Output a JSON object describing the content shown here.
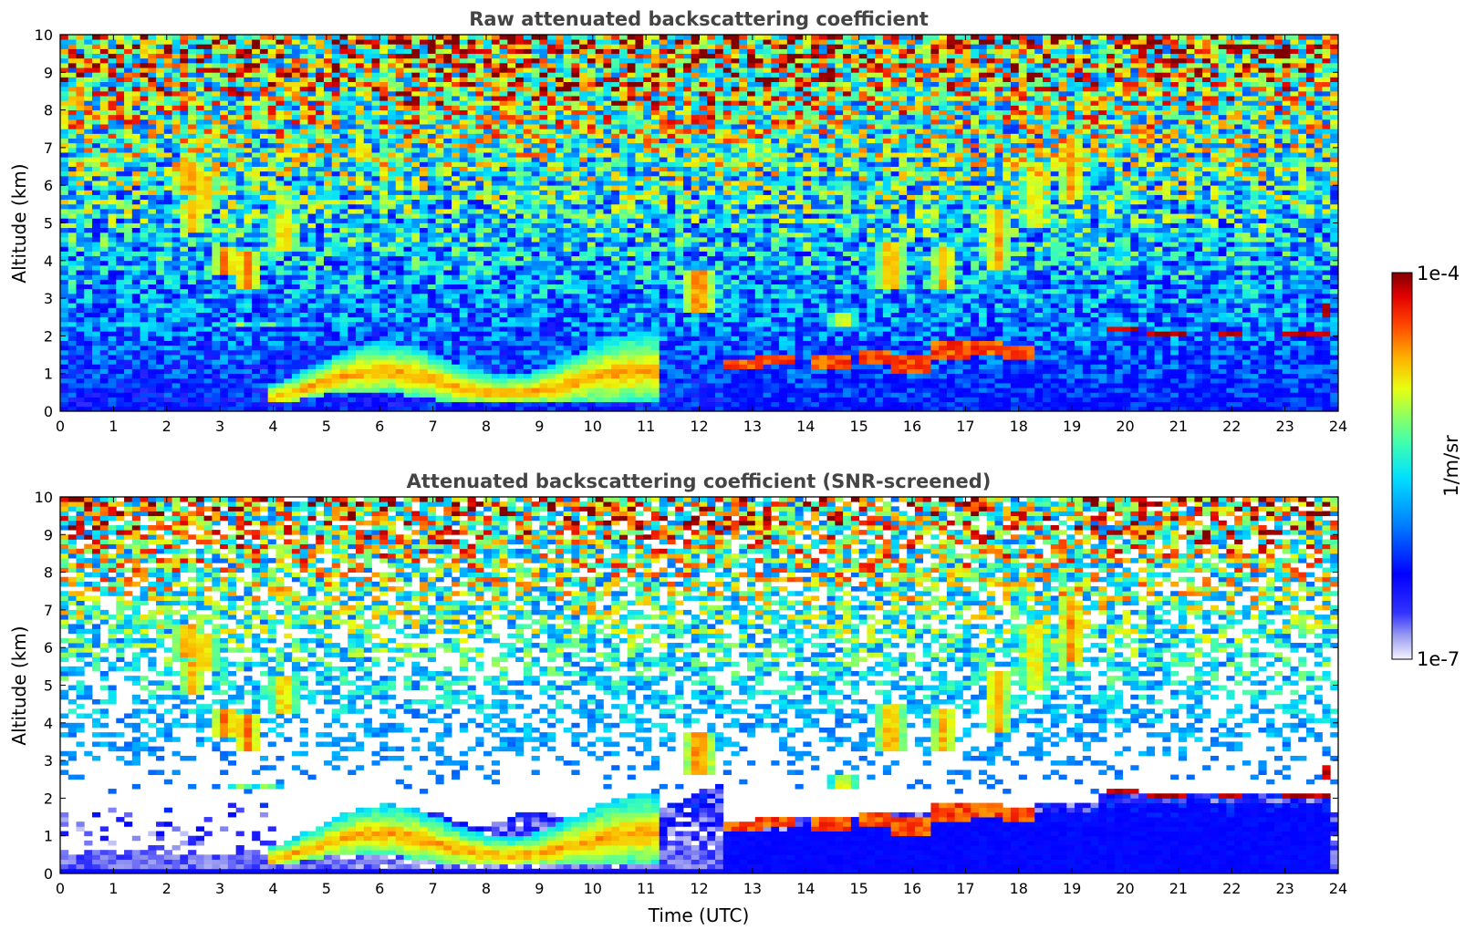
{
  "chart_data": [
    {
      "type": "heatmap",
      "title": "Raw attenuated backscattering coefficient",
      "xlabel": "",
      "ylabel": "Altitude (km)",
      "xlim": [
        0,
        24
      ],
      "ylim": [
        0,
        10
      ],
      "xticks": [
        0,
        1,
        2,
        3,
        4,
        5,
        6,
        7,
        8,
        9,
        10,
        11,
        12,
        13,
        14,
        15,
        16,
        17,
        18,
        19,
        20,
        21,
        22,
        23,
        24
      ],
      "yticks": [
        0,
        1,
        2,
        3,
        4,
        5,
        6,
        7,
        8,
        9,
        10
      ],
      "screened": false
    },
    {
      "type": "heatmap",
      "title": "Attenuated backscattering coefficient (SNR-screened)",
      "xlabel": "Time (UTC)",
      "ylabel": "Altitude (km)",
      "xlim": [
        0,
        24
      ],
      "ylim": [
        0,
        10
      ],
      "xticks": [
        0,
        1,
        2,
        3,
        4,
        5,
        6,
        7,
        8,
        9,
        10,
        11,
        12,
        13,
        14,
        15,
        16,
        17,
        18,
        19,
        20,
        21,
        22,
        23,
        24
      ],
      "yticks": [
        0,
        1,
        2,
        3,
        4,
        5,
        6,
        7,
        8,
        9,
        10
      ],
      "screened": true
    }
  ],
  "colorbar": {
    "label": "1/m/sr",
    "max_label": "1e-4",
    "min_label": "1e-7",
    "scale": "log",
    "range": [
      1e-07,
      0.0001
    ],
    "colormap": "jet"
  },
  "features": {
    "cloud_bands": [
      [
        2.4,
        5.8,
        6.6,
        20
      ],
      [
        2.7,
        5.4,
        6.4,
        15
      ],
      [
        3.1,
        3.6,
        4.4,
        20
      ],
      [
        3.5,
        3.2,
        4.3,
        20
      ],
      [
        3.4,
        2.2,
        2.4,
        3
      ],
      [
        3.9,
        2.2,
        2.35,
        3
      ],
      [
        4.6,
        2.2,
        2.3,
        3
      ],
      [
        2.5,
        4.8,
        5.6,
        15
      ],
      [
        4.2,
        4.3,
        5.3,
        15
      ],
      [
        12.0,
        2.6,
        3.8,
        22
      ],
      [
        14.7,
        2.2,
        2.6,
        10
      ],
      [
        15.6,
        3.3,
        4.5,
        18
      ],
      [
        16.6,
        3.2,
        4.4,
        15
      ],
      [
        17.6,
        3.8,
        5.4,
        16
      ],
      [
        18.3,
        4.9,
        6.6,
        12
      ],
      [
        19.0,
        5.6,
        7.3,
        18
      ]
    ],
    "low_layers": [
      [
        12.8,
        1.1,
        1.4,
        5
      ],
      [
        13.4,
        1.3,
        1.5,
        5
      ],
      [
        14.5,
        1.15,
        1.45,
        4
      ],
      [
        15.3,
        1.2,
        1.6,
        5
      ],
      [
        16.0,
        1.0,
        1.5,
        6
      ],
      [
        16.7,
        1.4,
        1.9,
        6
      ],
      [
        17.4,
        1.5,
        1.9,
        6
      ],
      [
        18.0,
        1.4,
        1.7,
        5
      ]
    ],
    "boundary_cap": [
      [
        19.7,
        20.3,
        2.1,
        2.25
      ],
      [
        20.4,
        21.2,
        1.95,
        2.1
      ],
      [
        21.7,
        22.2,
        2.0,
        2.15
      ],
      [
        22.9,
        23.8,
        2.0,
        2.15
      ],
      [
        23.75,
        23.85,
        2.55,
        2.85
      ]
    ]
  }
}
